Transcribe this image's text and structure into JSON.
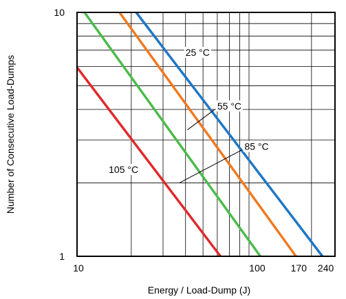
{
  "chart_data": {
    "type": "line",
    "xlabel": "Energy / Load-Dump (J)",
    "ylabel": "Number of Consecutive Load-Dumps",
    "x_scale": "log",
    "y_scale": "log",
    "xlim": [
      10,
      270
    ],
    "ylim": [
      1,
      10
    ],
    "x_tick_labels": [
      "10",
      "100",
      "170",
      "240"
    ],
    "y_tick_labels": [
      "1",
      "10"
    ],
    "grid": true,
    "series": [
      {
        "name": "25 °C",
        "color": "#1f77c4",
        "points": [
          [
            21.3,
            10
          ],
          [
            230,
            1
          ]
        ]
      },
      {
        "name": "55 °C",
        "color": "#f07a21",
        "points": [
          [
            17.2,
            10
          ],
          [
            164,
            1
          ]
        ]
      },
      {
        "name": "85 °C",
        "color": "#4dbb4a",
        "points": [
          [
            11.0,
            10
          ],
          [
            104,
            1
          ]
        ]
      },
      {
        "name": "105 °C",
        "color": "#e0282a",
        "points": [
          [
            10,
            5.95
          ],
          [
            62.5,
            1
          ]
        ]
      }
    ],
    "annotations": [
      {
        "text": "25 °C",
        "series": "25 °C",
        "label_at": [
          40,
          6.8
        ],
        "leader_to": [
          40,
          6.8
        ]
      },
      {
        "text": "55 °C",
        "series": "55 °C",
        "label_at": [
          60,
          4.1
        ],
        "leader_to": [
          41,
          3.3
        ]
      },
      {
        "text": "85 °C",
        "series": "85 °C",
        "label_at": [
          85,
          2.8
        ],
        "leader_to": [
          37,
          2.0
        ]
      },
      {
        "text": "105 °C",
        "series": "105 °C",
        "label_at": [
          15,
          2.25
        ],
        "leader_to": [
          15,
          2.25
        ]
      }
    ]
  }
}
